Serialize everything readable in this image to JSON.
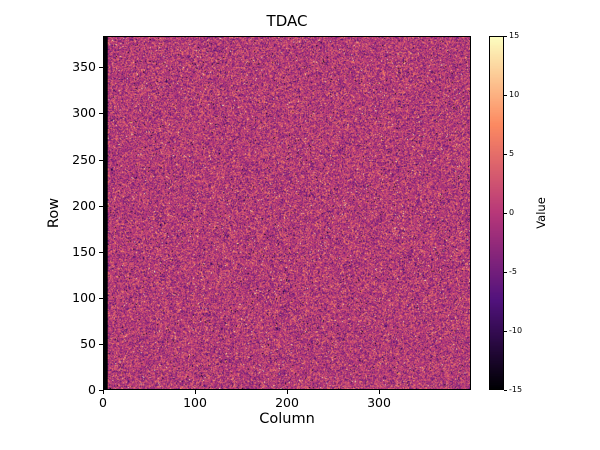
{
  "figure": {
    "background": "#ffffff",
    "spine_color": "#000000"
  },
  "chart_data": {
    "type": "heatmap",
    "title": "TDAC",
    "xlabel": "Column",
    "ylabel": "Row",
    "x_range": [
      0,
      400
    ],
    "y_range": [
      0,
      384
    ],
    "x_ticks": [
      0,
      100,
      200,
      300
    ],
    "y_ticks": [
      0,
      50,
      100,
      150,
      200,
      250,
      300,
      350
    ],
    "grid": false,
    "legend": "none",
    "colorbar": {
      "label": "Value",
      "ticks": [
        15,
        10,
        5,
        0,
        -5,
        -10,
        -15
      ],
      "vmin": -15,
      "vmax": 15,
      "position": "right"
    },
    "colormap": {
      "name": "magma",
      "stops": [
        [
          0.0,
          "#000004"
        ],
        [
          0.25,
          "#51127c"
        ],
        [
          0.5,
          "#b73779"
        ],
        [
          0.75,
          "#fc8961"
        ],
        [
          1.0,
          "#fcfdbf"
        ]
      ]
    },
    "data_description": {
      "pattern": "random-noise",
      "distribution": "gaussian",
      "mean": 0,
      "sigma": 3.6,
      "outlier_fraction": 0.035,
      "outlier_scale": 2.6,
      "seed": 42,
      "black_left_columns": 4,
      "black_value": -15
    }
  }
}
